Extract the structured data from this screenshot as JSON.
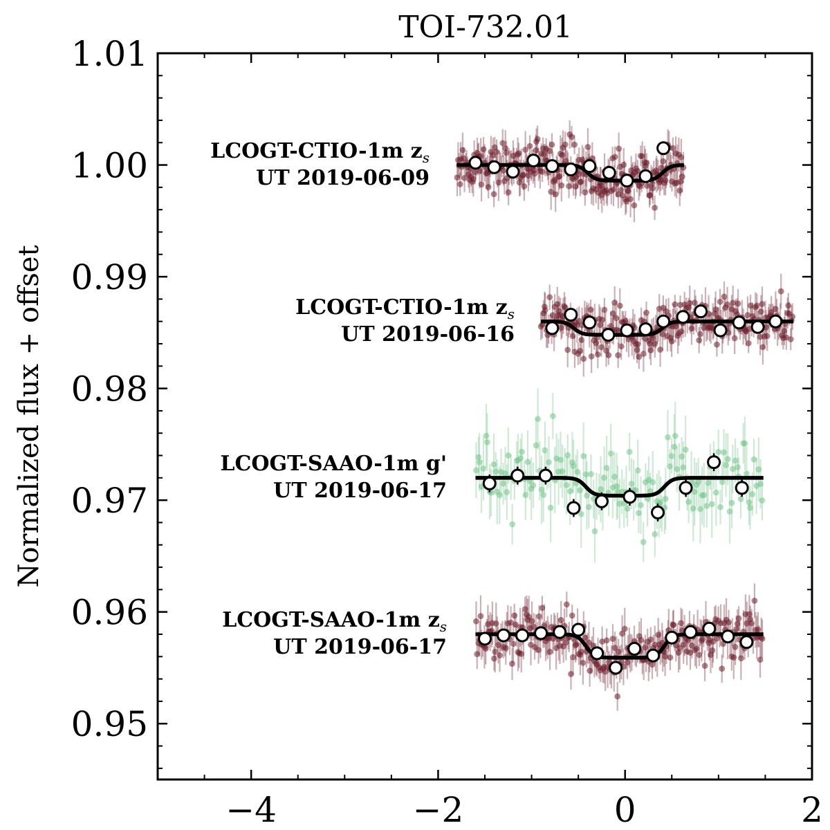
{
  "chart_data": {
    "type": "scatter",
    "title": "TOI-732.01",
    "xlabel": "",
    "ylabel": "Normalized flux + offset",
    "xlim": [
      -5,
      2
    ],
    "ylim": [
      0.945,
      1.01
    ],
    "xticks": [
      -4,
      -2,
      0,
      2
    ],
    "xtick_labels": [
      "−4",
      "−2",
      "0",
      "2"
    ],
    "yticks": [
      0.95,
      0.96,
      0.97,
      0.98,
      0.99,
      1.0,
      1.01
    ],
    "ytick_labels": [
      "0.95",
      "0.96",
      "0.97",
      "0.98",
      "0.99",
      "1.00",
      "1.01"
    ],
    "colors": {
      "z_points": "#6b1d2a",
      "g_points": "#74c48a",
      "model": "#000000",
      "binned_fill": "#ffffff",
      "binned_edge": "#000000"
    },
    "series": [
      {
        "name": "LCOGT-CTIO-1m z_s UT 2019-06-09",
        "label_line1": "LCOGT-CTIO-1m z",
        "label_sub": "s",
        "label_line2": "UT 2019-06-09",
        "filter": "z",
        "baseline": 1.0,
        "depth": 0.0014,
        "x_range": [
          -1.8,
          0.63
        ],
        "transit": [
          -0.4,
          0.4
        ],
        "scatter": 0.0012,
        "binned": [
          {
            "x": -1.6,
            "y": 1.0002
          },
          {
            "x": -1.4,
            "y": 0.9998
          },
          {
            "x": -1.2,
            "y": 0.9994
          },
          {
            "x": -0.98,
            "y": 1.0004
          },
          {
            "x": -0.78,
            "y": 0.9999
          },
          {
            "x": -0.58,
            "y": 0.9996
          },
          {
            "x": -0.38,
            "y": 0.9999
          },
          {
            "x": -0.17,
            "y": 0.9993
          },
          {
            "x": 0.02,
            "y": 0.9986
          },
          {
            "x": 0.22,
            "y": 0.999
          },
          {
            "x": 0.41,
            "y": 1.0015
          }
        ]
      },
      {
        "name": "LCOGT-CTIO-1m z_s UT 2019-06-16",
        "label_line1": "LCOGT-CTIO-1m z",
        "label_sub": "s",
        "label_line2": "UT 2019-06-16",
        "filter": "z",
        "baseline": 0.986,
        "depth": 0.0012,
        "x_range": [
          -0.9,
          1.8
        ],
        "transit": [
          -0.55,
          0.4
        ],
        "scatter": 0.0012,
        "binned": [
          {
            "x": -0.78,
            "y": 0.9854
          },
          {
            "x": -0.58,
            "y": 0.9866
          },
          {
            "x": -0.38,
            "y": 0.9859
          },
          {
            "x": -0.18,
            "y": 0.9848
          },
          {
            "x": 0.02,
            "y": 0.9852
          },
          {
            "x": 0.22,
            "y": 0.9853
          },
          {
            "x": 0.41,
            "y": 0.986
          },
          {
            "x": 0.62,
            "y": 0.9864
          },
          {
            "x": 0.81,
            "y": 0.9869
          },
          {
            "x": 1.02,
            "y": 0.9852
          },
          {
            "x": 1.22,
            "y": 0.9859
          },
          {
            "x": 1.42,
            "y": 0.9855
          },
          {
            "x": 1.61,
            "y": 0.986
          }
        ]
      },
      {
        "name": "LCOGT-SAAO-1m g' UT 2019-06-17",
        "label_line1": "LCOGT-SAAO-1m g'",
        "label_sub": "",
        "label_line2": "UT 2019-06-17",
        "filter": "g",
        "baseline": 0.972,
        "depth": 0.0016,
        "x_range": [
          -1.6,
          1.48
        ],
        "transit": [
          -0.42,
          0.42
        ],
        "scatter": 0.0022,
        "binned": [
          {
            "x": -1.45,
            "y": 0.9715
          },
          {
            "x": -1.15,
            "y": 0.9722
          },
          {
            "x": -0.85,
            "y": 0.9722
          },
          {
            "x": -0.55,
            "y": 0.9693
          },
          {
            "x": -0.25,
            "y": 0.9699
          },
          {
            "x": 0.05,
            "y": 0.9703
          },
          {
            "x": 0.35,
            "y": 0.9689
          },
          {
            "x": 0.65,
            "y": 0.9711
          },
          {
            "x": 0.95,
            "y": 0.9734
          },
          {
            "x": 1.25,
            "y": 0.9711
          }
        ]
      },
      {
        "name": "LCOGT-SAAO-1m z_s UT 2019-06-17",
        "label_line1": "LCOGT-SAAO-1m z",
        "label_sub": "s",
        "label_line2": "UT 2019-06-17",
        "filter": "z",
        "baseline": 0.958,
        "depth": 0.0021,
        "x_range": [
          -1.6,
          1.48
        ],
        "transit": [
          -0.42,
          0.42
        ],
        "scatter": 0.0014,
        "binned": [
          {
            "x": -1.5,
            "y": 0.9576
          },
          {
            "x": -1.3,
            "y": 0.9579
          },
          {
            "x": -1.1,
            "y": 0.9579
          },
          {
            "x": -0.9,
            "y": 0.9581
          },
          {
            "x": -0.7,
            "y": 0.9582
          },
          {
            "x": -0.5,
            "y": 0.9584
          },
          {
            "x": -0.3,
            "y": 0.9563
          },
          {
            "x": -0.1,
            "y": 0.955
          },
          {
            "x": 0.1,
            "y": 0.9567
          },
          {
            "x": 0.3,
            "y": 0.9561
          },
          {
            "x": 0.5,
            "y": 0.9577
          },
          {
            "x": 0.7,
            "y": 0.9582
          },
          {
            "x": 0.9,
            "y": 0.9585
          },
          {
            "x": 1.1,
            "y": 0.9578
          },
          {
            "x": 1.3,
            "y": 0.9573
          }
        ]
      }
    ]
  }
}
